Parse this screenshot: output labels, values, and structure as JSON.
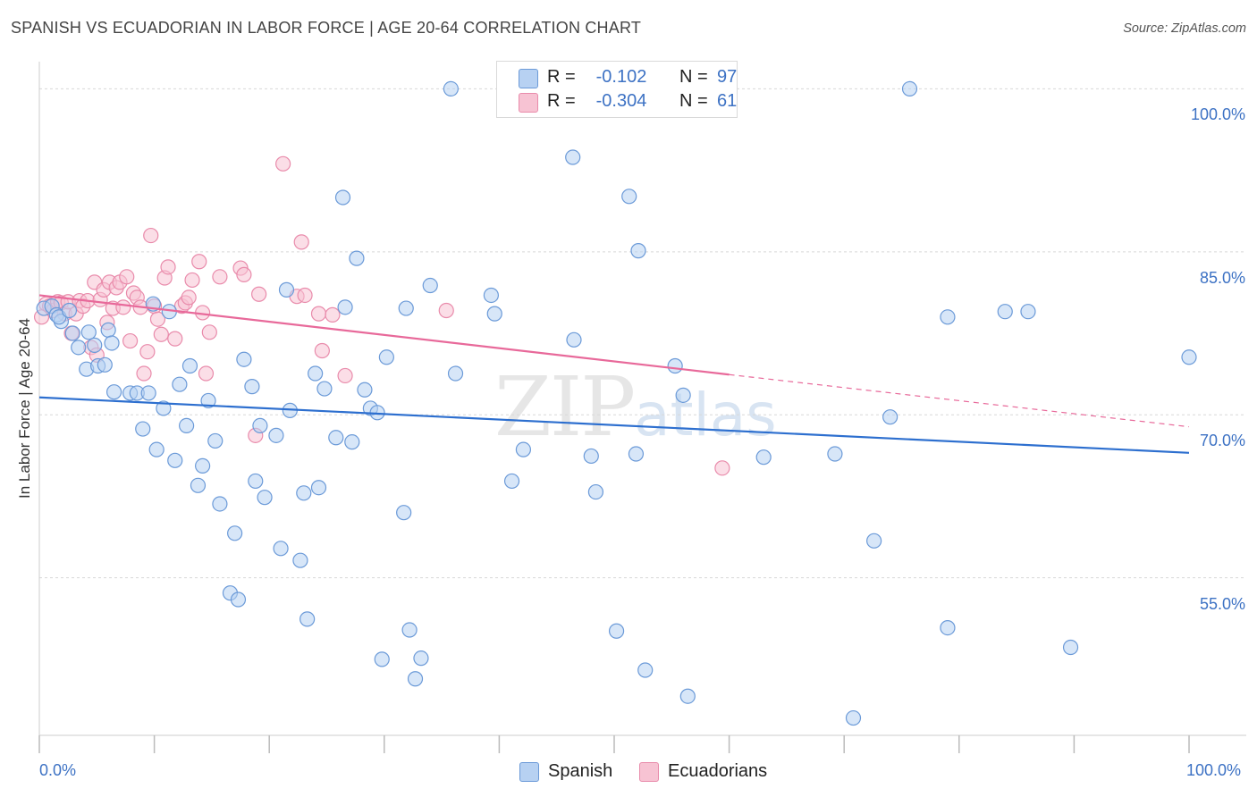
{
  "header": {
    "title": "SPANISH VS ECUADORIAN IN LABOR FORCE | AGE 20-64 CORRELATION CHART",
    "source": "Source: ZipAtlas.com"
  },
  "watermark": {
    "zip": "ZIP",
    "atlas": "atlas"
  },
  "legend": {
    "rows": [
      {
        "r_label": "R =",
        "r_value": "-0.102",
        "n_label": "N =",
        "n_value": "97"
      },
      {
        "r_label": "R =",
        "r_value": "-0.304",
        "n_label": "N =",
        "n_value": "61"
      }
    ]
  },
  "colors": {
    "spanish_fill": "#b7d1f2",
    "spanish_stroke": "#6b9ad8",
    "spanish_line": "#2d6fcf",
    "ecuadorian_fill": "#f7c3d3",
    "ecuadorian_stroke": "#e98bab",
    "ecuadorian_line": "#e8699a",
    "grid": "#d8d8d8",
    "axis_text": "#3d72c4"
  },
  "chart_data": {
    "type": "scatter",
    "title": "SPANISH VS ECUADORIAN IN LABOR FORCE | AGE 20-64 CORRELATION CHART",
    "xlabel": "",
    "ylabel": "In Labor Force | Age 20-64",
    "xlim": [
      0,
      100
    ],
    "ylim": [
      40.5,
      102.5
    ],
    "x_tick_labels": [
      "0.0%",
      "100.0%"
    ],
    "y_ticks": [
      55,
      70,
      85,
      100
    ],
    "y_tick_labels": [
      "55.0%",
      "70.0%",
      "85.0%",
      "100.0%"
    ],
    "grid": true,
    "legend_position": "top-center",
    "series": [
      {
        "name": "Spanish",
        "r": -0.102,
        "n": 97,
        "trend": {
          "x0": 0,
          "y0": 71.6,
          "x1": 100,
          "y1": 66.5
        },
        "points": [
          [
            0.4,
            79.8
          ],
          [
            1.1,
            80.0
          ],
          [
            1.5,
            79.2
          ],
          [
            1.9,
            78.6
          ],
          [
            1.7,
            79.0
          ],
          [
            2.6,
            79.6
          ],
          [
            2.9,
            77.5
          ],
          [
            3.4,
            76.2
          ],
          [
            4.1,
            74.2
          ],
          [
            4.3,
            77.6
          ],
          [
            4.8,
            76.4
          ],
          [
            5.1,
            74.5
          ],
          [
            5.7,
            74.6
          ],
          [
            6.0,
            77.8
          ],
          [
            6.3,
            76.6
          ],
          [
            6.5,
            72.1
          ],
          [
            7.9,
            72.0
          ],
          [
            8.5,
            72.0
          ],
          [
            9.0,
            68.7
          ],
          [
            9.5,
            72.0
          ],
          [
            9.9,
            80.2
          ],
          [
            10.2,
            66.8
          ],
          [
            10.8,
            70.6
          ],
          [
            11.3,
            79.5
          ],
          [
            11.8,
            65.8
          ],
          [
            12.2,
            72.8
          ],
          [
            12.8,
            69.0
          ],
          [
            13.1,
            74.5
          ],
          [
            13.8,
            63.5
          ],
          [
            14.2,
            65.3
          ],
          [
            14.7,
            71.3
          ],
          [
            15.3,
            67.6
          ],
          [
            15.7,
            61.8
          ],
          [
            16.6,
            53.6
          ],
          [
            17.0,
            59.1
          ],
          [
            17.3,
            53.0
          ],
          [
            17.8,
            75.1
          ],
          [
            18.5,
            72.6
          ],
          [
            18.8,
            63.9
          ],
          [
            19.2,
            69.0
          ],
          [
            19.6,
            62.4
          ],
          [
            20.6,
            68.1
          ],
          [
            21.0,
            57.7
          ],
          [
            21.5,
            81.5
          ],
          [
            21.8,
            70.4
          ],
          [
            22.7,
            56.6
          ],
          [
            23.0,
            62.8
          ],
          [
            23.3,
            51.2
          ],
          [
            24.0,
            73.8
          ],
          [
            24.3,
            63.3
          ],
          [
            24.8,
            72.4
          ],
          [
            25.8,
            67.9
          ],
          [
            26.4,
            90.0
          ],
          [
            26.6,
            79.9
          ],
          [
            27.2,
            67.5
          ],
          [
            27.6,
            84.4
          ],
          [
            28.3,
            72.3
          ],
          [
            28.8,
            70.6
          ],
          [
            29.4,
            70.2
          ],
          [
            29.8,
            47.5
          ],
          [
            30.2,
            75.3
          ],
          [
            31.7,
            61.0
          ],
          [
            31.9,
            79.8
          ],
          [
            32.2,
            50.2
          ],
          [
            32.7,
            45.7
          ],
          [
            33.2,
            47.6
          ],
          [
            34.0,
            81.9
          ],
          [
            35.8,
            100.0
          ],
          [
            36.2,
            73.8
          ],
          [
            39.3,
            81.0
          ],
          [
            39.6,
            79.3
          ],
          [
            41.1,
            63.9
          ],
          [
            42.1,
            66.8
          ],
          [
            45.7,
            100.0
          ],
          [
            46.4,
            93.7
          ],
          [
            46.5,
            76.9
          ],
          [
            48.0,
            66.2
          ],
          [
            48.4,
            62.9
          ],
          [
            50.2,
            50.1
          ],
          [
            51.3,
            90.1
          ],
          [
            51.9,
            66.4
          ],
          [
            52.1,
            85.1
          ],
          [
            52.7,
            46.5
          ],
          [
            55.3,
            74.5
          ],
          [
            56.0,
            71.8
          ],
          [
            56.4,
            44.1
          ],
          [
            63.0,
            66.1
          ],
          [
            69.2,
            66.4
          ],
          [
            70.8,
            42.1
          ],
          [
            72.6,
            58.4
          ],
          [
            74.0,
            69.8
          ],
          [
            75.7,
            100.0
          ],
          [
            79.0,
            79.0
          ],
          [
            79.0,
            50.4
          ],
          [
            84.0,
            79.5
          ],
          [
            86.0,
            79.5
          ],
          [
            89.7,
            48.6
          ],
          [
            100.0,
            75.3
          ]
        ]
      },
      {
        "name": "Ecuadorians",
        "r": -0.304,
        "n": 61,
        "trend": {
          "x0": 0,
          "y0": 81.0,
          "x1": 60,
          "y1": 73.7,
          "dashed_x1": 100,
          "dashed_y1": 68.9
        },
        "points": [
          [
            0.2,
            79.0
          ],
          [
            0.6,
            80.2
          ],
          [
            0.9,
            80.0
          ],
          [
            1.2,
            79.6
          ],
          [
            1.6,
            80.4
          ],
          [
            1.9,
            80.3
          ],
          [
            2.2,
            79.3
          ],
          [
            2.5,
            80.4
          ],
          [
            2.8,
            77.5
          ],
          [
            3.2,
            79.3
          ],
          [
            3.5,
            80.5
          ],
          [
            3.8,
            80.0
          ],
          [
            4.2,
            80.5
          ],
          [
            4.5,
            76.2
          ],
          [
            4.8,
            82.2
          ],
          [
            5.0,
            75.5
          ],
          [
            5.3,
            80.6
          ],
          [
            5.6,
            81.5
          ],
          [
            5.9,
            78.5
          ],
          [
            6.1,
            82.2
          ],
          [
            6.4,
            79.8
          ],
          [
            6.7,
            81.7
          ],
          [
            7.0,
            82.2
          ],
          [
            7.3,
            79.9
          ],
          [
            7.6,
            82.7
          ],
          [
            7.9,
            76.8
          ],
          [
            8.2,
            81.2
          ],
          [
            8.5,
            80.8
          ],
          [
            8.8,
            79.9
          ],
          [
            9.1,
            73.8
          ],
          [
            9.4,
            75.8
          ],
          [
            9.7,
            86.5
          ],
          [
            10.0,
            80.0
          ],
          [
            10.3,
            78.8
          ],
          [
            10.6,
            77.4
          ],
          [
            10.9,
            82.6
          ],
          [
            11.2,
            83.6
          ],
          [
            11.8,
            77.0
          ],
          [
            12.4,
            80.0
          ],
          [
            12.7,
            80.3
          ],
          [
            13.0,
            80.8
          ],
          [
            13.3,
            82.4
          ],
          [
            13.9,
            84.1
          ],
          [
            14.2,
            79.4
          ],
          [
            14.5,
            73.8
          ],
          [
            14.8,
            77.6
          ],
          [
            15.7,
            82.7
          ],
          [
            17.5,
            83.5
          ],
          [
            17.8,
            82.9
          ],
          [
            18.8,
            68.1
          ],
          [
            19.1,
            81.1
          ],
          [
            21.2,
            93.1
          ],
          [
            22.4,
            80.9
          ],
          [
            22.8,
            85.9
          ],
          [
            23.1,
            81.0
          ],
          [
            24.3,
            79.3
          ],
          [
            24.6,
            75.9
          ],
          [
            25.5,
            79.2
          ],
          [
            26.6,
            73.6
          ],
          [
            35.4,
            79.6
          ],
          [
            59.4,
            65.1
          ]
        ]
      }
    ]
  }
}
